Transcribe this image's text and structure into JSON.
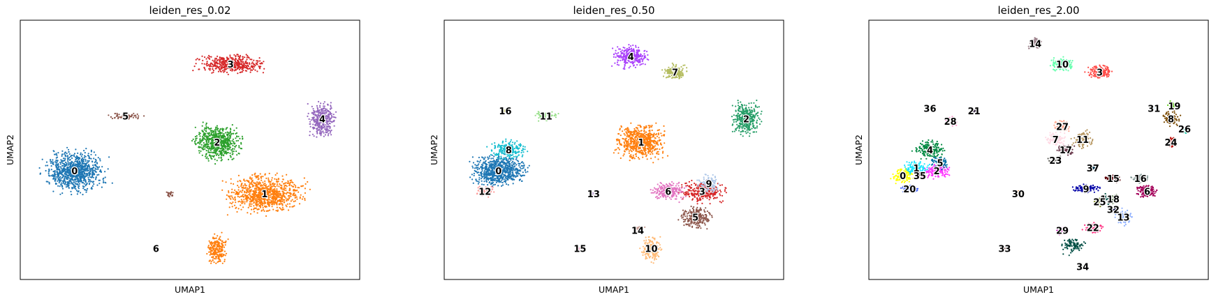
{
  "figure": {
    "background": "#ffffff"
  },
  "chart_data": [
    {
      "type": "scatter",
      "title": "leiden_res_0.02",
      "xlabel": "UMAP1",
      "ylabel": "UMAP2",
      "xticks": false,
      "yticks": false,
      "clusters": [
        {
          "label": "0",
          "color": "#1f77b4",
          "x": 0.16,
          "y": 0.42,
          "rx": 0.11,
          "ry": 0.1,
          "n": 900
        },
        {
          "label": "1",
          "color": "#ff7f0e",
          "x": 0.72,
          "y": 0.33,
          "rx": 0.14,
          "ry": 0.09,
          "n": 900
        },
        {
          "label": "1",
          "color": "#ff7f0e",
          "x": 0.58,
          "y": 0.12,
          "rx": 0.035,
          "ry": 0.07,
          "n": 220,
          "show_label": false
        },
        {
          "label": "2",
          "color": "#2ca02c",
          "x": 0.58,
          "y": 0.53,
          "rx": 0.085,
          "ry": 0.085,
          "n": 650
        },
        {
          "label": "3",
          "color": "#d62728",
          "x": 0.62,
          "y": 0.83,
          "rx": 0.12,
          "ry": 0.045,
          "n": 450
        },
        {
          "label": "4",
          "color": "#9467bd",
          "x": 0.89,
          "y": 0.62,
          "rx": 0.05,
          "ry": 0.08,
          "n": 350
        },
        {
          "label": "5",
          "color": "#8c564b",
          "x": 0.31,
          "y": 0.63,
          "rx": 0.06,
          "ry": 0.015,
          "n": 70
        },
        {
          "label": "5",
          "color": "#8c564b",
          "x": 0.44,
          "y": 0.33,
          "rx": 0.015,
          "ry": 0.015,
          "n": 25,
          "show_label": false
        },
        {
          "label": "6",
          "color": "#e377c2",
          "x": 0.4,
          "y": 0.12,
          "rx": 0.006,
          "ry": 0.006,
          "n": 12
        }
      ]
    },
    {
      "type": "scatter",
      "title": "leiden_res_0.50",
      "xlabel": "UMAP1",
      "ylabel": "UMAP2",
      "xticks": false,
      "yticks": false,
      "clusters": [
        {
          "label": "0",
          "color": "#1f77b4",
          "x": 0.16,
          "y": 0.42,
          "rx": 0.1,
          "ry": 0.07,
          "n": 750
        },
        {
          "label": "1",
          "color": "#ff7f0e",
          "x": 0.58,
          "y": 0.53,
          "rx": 0.085,
          "ry": 0.085,
          "n": 650
        },
        {
          "label": "2",
          "color": "#279e68",
          "x": 0.89,
          "y": 0.62,
          "rx": 0.05,
          "ry": 0.08,
          "n": 350
        },
        {
          "label": "3",
          "color": "#d62728",
          "x": 0.76,
          "y": 0.34,
          "rx": 0.08,
          "ry": 0.05,
          "n": 300
        },
        {
          "label": "4",
          "color": "#aa40fc",
          "x": 0.55,
          "y": 0.86,
          "rx": 0.06,
          "ry": 0.05,
          "n": 300
        },
        {
          "label": "5",
          "color": "#8c564b",
          "x": 0.74,
          "y": 0.24,
          "rx": 0.06,
          "ry": 0.05,
          "n": 250
        },
        {
          "label": "6",
          "color": "#e377c2",
          "x": 0.66,
          "y": 0.34,
          "rx": 0.06,
          "ry": 0.045,
          "n": 250
        },
        {
          "label": "7",
          "color": "#b5bd61",
          "x": 0.68,
          "y": 0.8,
          "rx": 0.045,
          "ry": 0.035,
          "n": 180
        },
        {
          "label": "8",
          "color": "#17becf",
          "x": 0.19,
          "y": 0.5,
          "rx": 0.07,
          "ry": 0.045,
          "n": 220
        },
        {
          "label": "9",
          "color": "#aec7e8",
          "x": 0.78,
          "y": 0.37,
          "rx": 0.04,
          "ry": 0.04,
          "n": 120
        },
        {
          "label": "10",
          "color": "#ffbb78",
          "x": 0.61,
          "y": 0.12,
          "rx": 0.035,
          "ry": 0.06,
          "n": 200
        },
        {
          "label": "11",
          "color": "#98df8a",
          "x": 0.3,
          "y": 0.63,
          "rx": 0.04,
          "ry": 0.025,
          "n": 60
        },
        {
          "label": "12",
          "color": "#ff9896",
          "x": 0.12,
          "y": 0.34,
          "rx": 0.035,
          "ry": 0.025,
          "n": 80
        },
        {
          "label": "13",
          "color": "#c5b0d5",
          "x": 0.44,
          "y": 0.33,
          "rx": 0.015,
          "ry": 0.015,
          "n": 25
        },
        {
          "label": "14",
          "color": "#c49c94",
          "x": 0.57,
          "y": 0.19,
          "rx": 0.025,
          "ry": 0.02,
          "n": 40
        },
        {
          "label": "15",
          "color": "#f7b6d2",
          "x": 0.4,
          "y": 0.12,
          "rx": 0.006,
          "ry": 0.006,
          "n": 12
        },
        {
          "label": "16",
          "color": "#dbdb8d",
          "x": 0.18,
          "y": 0.65,
          "rx": 0.01,
          "ry": 0.008,
          "n": 10
        }
      ]
    },
    {
      "type": "scatter",
      "title": "leiden_res_2.00",
      "xlabel": "UMAP1",
      "ylabel": "UMAP2",
      "xticks": false,
      "yticks": false,
      "clusters": [
        {
          "label": "0",
          "color": "#ffff00",
          "x": 0.1,
          "y": 0.4,
          "rx": 0.04,
          "ry": 0.035,
          "n": 130
        },
        {
          "label": "1",
          "color": "#1ce6ff",
          "x": 0.14,
          "y": 0.43,
          "rx": 0.05,
          "ry": 0.035,
          "n": 150
        },
        {
          "label": "2",
          "color": "#ff34ff",
          "x": 0.2,
          "y": 0.42,
          "rx": 0.045,
          "ry": 0.035,
          "n": 140
        },
        {
          "label": "3",
          "color": "#ff4a46",
          "x": 0.68,
          "y": 0.8,
          "rx": 0.045,
          "ry": 0.035,
          "n": 180
        },
        {
          "label": "4",
          "color": "#008941",
          "x": 0.18,
          "y": 0.5,
          "rx": 0.055,
          "ry": 0.045,
          "n": 180
        },
        {
          "label": "5",
          "color": "#006fa6",
          "x": 0.21,
          "y": 0.45,
          "rx": 0.03,
          "ry": 0.03,
          "n": 80
        },
        {
          "label": "6",
          "color": "#a30059",
          "x": 0.82,
          "y": 0.34,
          "rx": 0.04,
          "ry": 0.03,
          "n": 120
        },
        {
          "label": "7",
          "color": "#ffdbe5",
          "x": 0.55,
          "y": 0.54,
          "rx": 0.035,
          "ry": 0.035,
          "n": 100
        },
        {
          "label": "8",
          "color": "#7a4900",
          "x": 0.89,
          "y": 0.62,
          "rx": 0.03,
          "ry": 0.035,
          "n": 90
        },
        {
          "label": "9",
          "color": "#0000a6",
          "x": 0.64,
          "y": 0.35,
          "rx": 0.05,
          "ry": 0.02,
          "n": 110
        },
        {
          "label": "10",
          "color": "#63ffac",
          "x": 0.57,
          "y": 0.83,
          "rx": 0.04,
          "ry": 0.03,
          "n": 160
        },
        {
          "label": "11",
          "color": "#b79762",
          "x": 0.63,
          "y": 0.54,
          "rx": 0.035,
          "ry": 0.04,
          "n": 110
        },
        {
          "label": "12",
          "color": "#004d43",
          "x": 0.7,
          "y": 0.31,
          "rx": 0.02,
          "ry": 0.025,
          "n": 60
        },
        {
          "label": "13",
          "color": "#8fb0ff",
          "x": 0.75,
          "y": 0.24,
          "rx": 0.035,
          "ry": 0.04,
          "n": 90
        },
        {
          "label": "14",
          "color": "#997d87",
          "x": 0.49,
          "y": 0.91,
          "rx": 0.025,
          "ry": 0.03,
          "n": 80
        },
        {
          "label": "15",
          "color": "#5a0007",
          "x": 0.72,
          "y": 0.39,
          "rx": 0.035,
          "ry": 0.02,
          "n": 70
        },
        {
          "label": "16",
          "color": "#809693",
          "x": 0.8,
          "y": 0.39,
          "rx": 0.03,
          "ry": 0.02,
          "n": 60
        },
        {
          "label": "17",
          "color": "#6a3a4c",
          "x": 0.58,
          "y": 0.5,
          "rx": 0.03,
          "ry": 0.025,
          "n": 70
        },
        {
          "label": "18",
          "color": "#1b4400",
          "x": 0.72,
          "y": 0.31,
          "rx": 0.02,
          "ry": 0.02,
          "n": 50
        },
        {
          "label": "19",
          "color": "#4fc601",
          "x": 0.9,
          "y": 0.67,
          "rx": 0.025,
          "ry": 0.02,
          "n": 50
        },
        {
          "label": "20",
          "color": "#3b5dff",
          "x": 0.12,
          "y": 0.35,
          "rx": 0.035,
          "ry": 0.02,
          "n": 80
        },
        {
          "label": "21",
          "color": "#4a3b53",
          "x": 0.31,
          "y": 0.65,
          "rx": 0.012,
          "ry": 0.01,
          "n": 20
        },
        {
          "label": "22",
          "color": "#ff2f80",
          "x": 0.66,
          "y": 0.2,
          "rx": 0.035,
          "ry": 0.03,
          "n": 70
        },
        {
          "label": "23",
          "color": "#61615a",
          "x": 0.55,
          "y": 0.46,
          "rx": 0.025,
          "ry": 0.02,
          "n": 50
        },
        {
          "label": "24",
          "color": "#ba0900",
          "x": 0.89,
          "y": 0.53,
          "rx": 0.02,
          "ry": 0.03,
          "n": 50
        },
        {
          "label": "25",
          "color": "#6b7900",
          "x": 0.68,
          "y": 0.3,
          "rx": 0.02,
          "ry": 0.02,
          "n": 40
        },
        {
          "label": "26",
          "color": "#00c2a0",
          "x": 0.93,
          "y": 0.58,
          "rx": 0.015,
          "ry": 0.02,
          "n": 40
        },
        {
          "label": "27",
          "color": "#ffaa92",
          "x": 0.57,
          "y": 0.59,
          "rx": 0.03,
          "ry": 0.03,
          "n": 70
        },
        {
          "label": "28",
          "color": "#ff90c9",
          "x": 0.24,
          "y": 0.61,
          "rx": 0.02,
          "ry": 0.03,
          "n": 35
        },
        {
          "label": "29",
          "color": "#b903aa",
          "x": 0.57,
          "y": 0.19,
          "rx": 0.025,
          "ry": 0.02,
          "n": 40
        },
        {
          "label": "30",
          "color": "#d16100",
          "x": 0.44,
          "y": 0.33,
          "rx": 0.015,
          "ry": 0.012,
          "n": 20
        },
        {
          "label": "31",
          "color": "#ddefff",
          "x": 0.84,
          "y": 0.66,
          "rx": 0.01,
          "ry": 0.01,
          "n": 10
        },
        {
          "label": "32",
          "color": "#000035",
          "x": 0.72,
          "y": 0.27,
          "rx": 0.015,
          "ry": 0.015,
          "n": 25
        },
        {
          "label": "33",
          "color": "#7b4f4b",
          "x": 0.4,
          "y": 0.12,
          "rx": 0.006,
          "ry": 0.006,
          "n": 12
        },
        {
          "label": "34",
          "color": "#a1c299",
          "x": 0.63,
          "y": 0.05,
          "rx": 0.01,
          "ry": 0.01,
          "n": 10
        },
        {
          "label": "35",
          "color": "#300018",
          "x": 0.15,
          "y": 0.4,
          "rx": 0.015,
          "ry": 0.015,
          "n": 25
        },
        {
          "label": "36",
          "color": "#0aa6d8",
          "x": 0.18,
          "y": 0.66,
          "rx": 0.008,
          "ry": 0.006,
          "n": 8
        },
        {
          "label": "37",
          "color": "#013349",
          "x": 0.66,
          "y": 0.43,
          "rx": 0.01,
          "ry": 0.008,
          "n": 10
        },
        {
          "label": "",
          "color": "#004d43",
          "x": 0.6,
          "y": 0.13,
          "rx": 0.04,
          "ry": 0.04,
          "n": 90
        }
      ]
    }
  ]
}
